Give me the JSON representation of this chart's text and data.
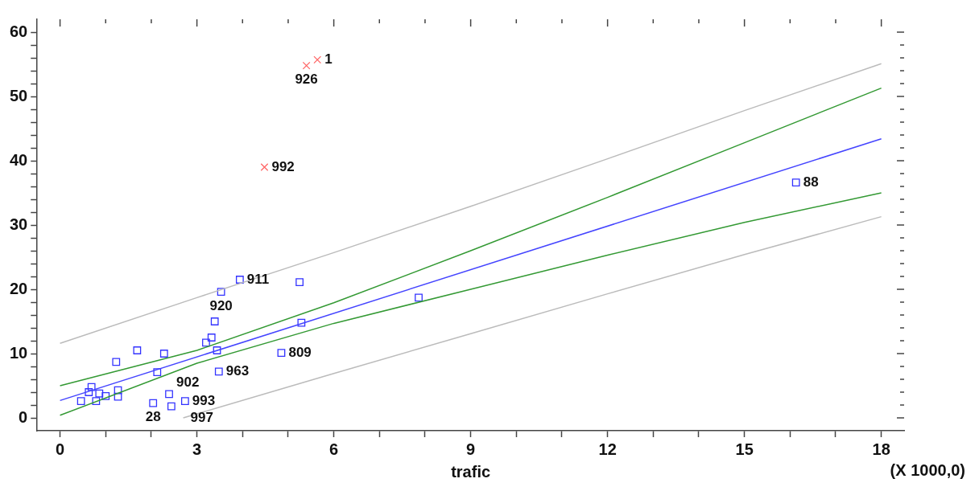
{
  "chart_data": {
    "type": "scatter",
    "xlabel": "trafic",
    "xlim": [
      -0.5,
      18.5
    ],
    "ylim": [
      -2,
      62
    ],
    "xticks": [
      0,
      {
        "value": 1,
        "label": null
      },
      {
        "value": 2,
        "label": null
      },
      3,
      {
        "value": 4,
        "label": null
      },
      {
        "value": 5,
        "label": null
      },
      6,
      {
        "value": 7,
        "label": null
      },
      {
        "value": 8,
        "label": null
      },
      9,
      {
        "value": 10,
        "label": null
      },
      {
        "value": 11,
        "label": null
      },
      12,
      {
        "value": 13,
        "label": null
      },
      {
        "value": 14,
        "label": null
      },
      15,
      {
        "value": 16,
        "label": null
      },
      {
        "value": 17,
        "label": null
      },
      18
    ],
    "yticks": [
      0,
      {
        "value": 2,
        "label": null
      },
      {
        "value": 4,
        "label": null
      },
      {
        "value": 6,
        "label": null
      },
      {
        "value": 8,
        "label": null
      },
      10,
      {
        "value": 12,
        "label": null
      },
      {
        "value": 14,
        "label": null
      },
      {
        "value": 16,
        "label": null
      },
      {
        "value": 18,
        "label": null
      },
      20,
      {
        "value": 22,
        "label": null
      },
      {
        "value": 24,
        "label": null
      },
      {
        "value": 26,
        "label": null
      },
      {
        "value": 28,
        "label": null
      },
      30,
      {
        "value": 32,
        "label": null
      },
      {
        "value": 34,
        "label": null
      },
      {
        "value": 36,
        "label": null
      },
      {
        "value": 38,
        "label": null
      },
      40,
      {
        "value": 42,
        "label": null
      },
      {
        "value": 44,
        "label": null
      },
      {
        "value": 46,
        "label": null
      },
      {
        "value": 48,
        "label": null
      },
      50,
      {
        "value": 52,
        "label": null
      },
      {
        "value": 54,
        "label": null
      },
      {
        "value": 56,
        "label": null
      },
      {
        "value": 58,
        "label": null
      },
      60
    ],
    "legend": false,
    "series": [
      {
        "type": "line",
        "color": "#bbbbbb",
        "marker": "none",
        "x": [
          0,
          3,
          6,
          9,
          12,
          15,
          18
        ],
        "values": [
          11.6,
          18.7,
          25.7,
          32.9,
          40.3,
          47.8,
          55.1
        ]
      },
      {
        "type": "line",
        "color": "#bbbbbb",
        "marker": "none",
        "x": [
          2.7,
          6,
          9,
          12,
          15,
          18
        ],
        "values": [
          0,
          6.9,
          13.1,
          19.3,
          25.4,
          31.3
        ]
      },
      {
        "type": "line",
        "color": "#339933",
        "marker": "none",
        "x": [
          0,
          3,
          6,
          9,
          12,
          15,
          18
        ],
        "values": [
          5.0,
          10.5,
          17.9,
          26.0,
          34.3,
          42.8,
          51.3
        ]
      },
      {
        "type": "line",
        "color": "#339933",
        "marker": "none",
        "x": [
          0,
          3,
          6,
          9,
          12,
          15,
          18
        ],
        "values": [
          0.4,
          8.5,
          14.7,
          20.0,
          25.3,
          30.4,
          35.0
        ]
      },
      {
        "type": "line",
        "color": "#4444ff",
        "marker": "none",
        "x": [
          0,
          18
        ],
        "values": [
          2.7,
          43.4
        ]
      },
      {
        "color": "#3333ff",
        "marker": "square",
        "x": [
          16.13,
          3.94,
          3.53,
          5.25,
          7.86,
          5.29,
          4.85,
          3.39,
          3.32,
          3.2,
          3.44,
          3.48,
          1.69,
          2.28,
          1.23,
          2.13,
          2.39,
          2.74,
          2.44,
          2.04,
          0.69,
          0.63,
          0.86,
          1.0,
          1.27,
          1.27,
          0.46,
          0.79
        ],
        "values": [
          36.6,
          21.5,
          19.6,
          21.1,
          18.7,
          14.8,
          10.1,
          15.0,
          12.5,
          11.7,
          10.5,
          7.2,
          10.5,
          10.0,
          8.7,
          7.1,
          3.7,
          2.6,
          1.8,
          2.3,
          4.8,
          4.0,
          3.8,
          3.4,
          4.3,
          3.3,
          2.6,
          2.6
        ]
      },
      {
        "color": "#ff6666",
        "marker": "cross",
        "x": [
          5.64,
          5.4,
          4.48
        ],
        "values": [
          55.7,
          54.8,
          39.0
        ]
      }
    ],
    "annotations": [
      {
        "text": "1",
        "x": 5.64,
        "y": 55.7
      },
      {
        "text": "926",
        "x": 5.4,
        "y": 54.8
      },
      {
        "text": "992",
        "x": 4.48,
        "y": 39.0
      },
      {
        "text": "88",
        "x": 16.13,
        "y": 36.6
      },
      {
        "text": "911",
        "x": 3.94,
        "y": 21.5
      },
      {
        "text": "920",
        "x": 3.53,
        "y": 19.6
      },
      {
        "text": "809",
        "x": 4.85,
        "y": 10.1
      },
      {
        "text": "963",
        "x": 3.48,
        "y": 7.2
      },
      {
        "text": "902",
        "x": 2.39,
        "y": 3.7
      },
      {
        "text": "993",
        "x": 2.74,
        "y": 2.6
      },
      {
        "text": "28",
        "x": 2.04,
        "y": 2.3
      },
      {
        "text": "997",
        "x": 2.7,
        "y": 0
      },
      "(X 1000,0)"
    ]
  }
}
